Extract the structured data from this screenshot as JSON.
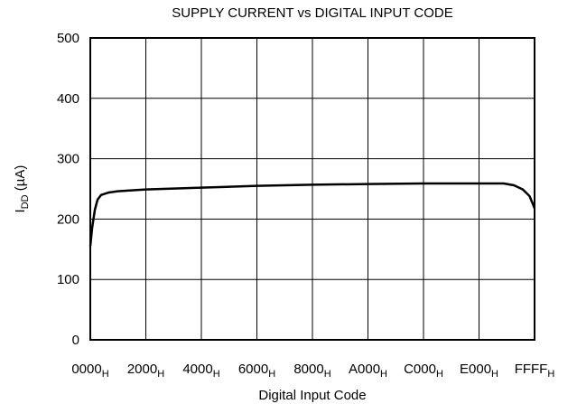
{
  "chart_data": {
    "type": "line",
    "title": "SUPPLY CURRENT vs DIGITAL INPUT CODE",
    "xlabel": "Digital Input Code",
    "ylabel": {
      "main": "I",
      "subscript": "DD",
      "unit": " (µA)"
    },
    "xtick_subscript": "H",
    "xlim": [
      0,
      65535
    ],
    "ylim": [
      0,
      500
    ],
    "xticks": [
      {
        "value": 0,
        "label": "0000"
      },
      {
        "value": 8192,
        "label": "2000"
      },
      {
        "value": 16384,
        "label": "4000"
      },
      {
        "value": 24576,
        "label": "6000"
      },
      {
        "value": 32768,
        "label": "8000"
      },
      {
        "value": 40960,
        "label": "A000"
      },
      {
        "value": 49152,
        "label": "C000"
      },
      {
        "value": 57344,
        "label": "E000"
      },
      {
        "value": 65535,
        "label": "FFFF"
      }
    ],
    "yticks": [
      0,
      100,
      200,
      300,
      400,
      500
    ],
    "grid": true,
    "series": [
      {
        "color": "#000000",
        "x": [
          0,
          266,
          666,
          1066,
          1600,
          2700,
          4000,
          8192,
          16384,
          24576,
          32768,
          40960,
          49152,
          57344,
          61000,
          62500,
          63800,
          64800,
          65535
        ],
        "values": [
          155,
          185,
          215,
          232,
          240,
          244,
          246,
          249,
          252,
          255,
          257,
          258,
          259,
          259,
          259,
          256,
          249,
          238,
          218
        ]
      }
    ]
  }
}
